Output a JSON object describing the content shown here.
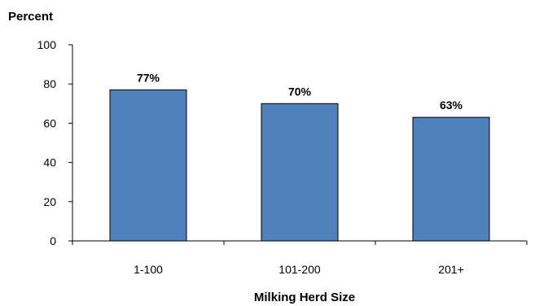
{
  "chart_data": {
    "type": "bar",
    "ylabel": "Percent",
    "xlabel": "Milking Herd Size",
    "categories": [
      "1-100",
      "101-200",
      "201+"
    ],
    "values": [
      77,
      70,
      63
    ],
    "data_labels": [
      "77%",
      "70%",
      "63%"
    ],
    "ylim": [
      0,
      100
    ],
    "yticks": [
      0,
      20,
      40,
      60,
      80,
      100
    ],
    "grid": false,
    "legend": "none",
    "colors": {
      "bar": "#4F81BD",
      "bar_border": "#000000",
      "axis": "#000000"
    }
  }
}
